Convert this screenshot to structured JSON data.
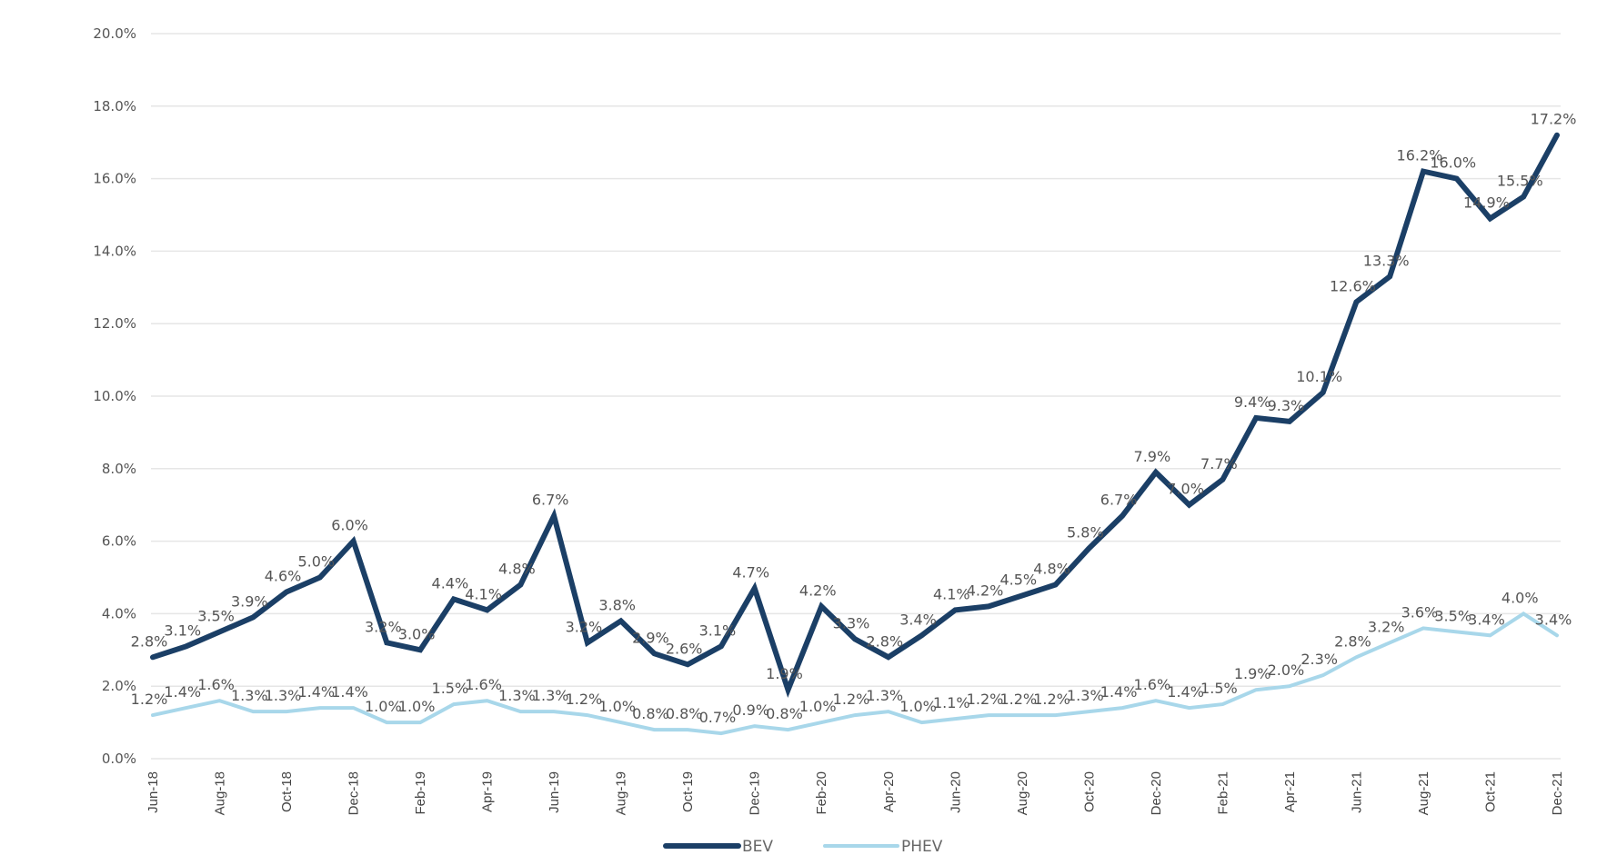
{
  "chart_data": {
    "type": "line",
    "title": "",
    "xlabel": "",
    "ylabel": "",
    "ylim": [
      0,
      20
    ],
    "y_ticks": [
      "0.0%",
      "2.0%",
      "4.0%",
      "6.0%",
      "8.0%",
      "10.0%",
      "12.0%",
      "14.0%",
      "16.0%",
      "18.0%",
      "20.0%"
    ],
    "y_tick_values": [
      0,
      2,
      4,
      6,
      8,
      10,
      12,
      14,
      16,
      18,
      20
    ],
    "grid": true,
    "legend_position": "bottom",
    "x": [
      "Jun-18",
      "Jul-18",
      "Aug-18",
      "Sep-18",
      "Oct-18",
      "Nov-18",
      "Dec-18",
      "Jan-19",
      "Feb-19",
      "Mar-19",
      "Apr-19",
      "May-19",
      "Jun-19",
      "Jul-19",
      "Aug-19",
      "Sep-19",
      "Oct-19",
      "Nov-19",
      "Dec-19",
      "Jan-20",
      "Feb-20",
      "Mar-20",
      "Apr-20",
      "May-20",
      "Jun-20",
      "Jul-20",
      "Aug-20",
      "Sep-20",
      "Oct-20",
      "Nov-20",
      "Dec-20",
      "Jan-21",
      "Feb-21",
      "Mar-21",
      "Apr-21",
      "May-21",
      "Jun-21",
      "Jul-21",
      "Aug-21",
      "Sep-21",
      "Oct-21",
      "Nov-21",
      "Dec-21"
    ],
    "x_tick_labels": [
      "Jun-18",
      "Aug-18",
      "Oct-18",
      "Dec-18",
      "Feb-19",
      "Apr-19",
      "Jun-19",
      "Aug-19",
      "Oct-19",
      "Dec-19",
      "Feb-20",
      "Apr-20",
      "Jun-20",
      "Aug-20",
      "Oct-20",
      "Dec-20",
      "Feb-21",
      "Apr-21",
      "Jun-21",
      "Aug-21",
      "Oct-21",
      "Dec-21"
    ],
    "series": [
      {
        "name": "BEV",
        "color": "#1b3f66",
        "values": [
          2.8,
          3.1,
          3.5,
          3.9,
          4.6,
          5.0,
          6.0,
          3.2,
          3.0,
          4.4,
          4.1,
          4.8,
          6.7,
          3.2,
          3.8,
          2.9,
          2.6,
          3.1,
          4.7,
          1.9,
          4.2,
          3.3,
          2.8,
          3.4,
          4.1,
          4.2,
          4.5,
          4.8,
          5.8,
          6.7,
          7.9,
          7.0,
          7.7,
          9.4,
          9.3,
          10.1,
          12.6,
          13.3,
          16.2,
          16.0,
          14.9,
          15.5,
          17.2
        ]
      },
      {
        "name": "PHEV",
        "color": "#a8d7ea",
        "values": [
          1.2,
          1.4,
          1.6,
          1.3,
          1.3,
          1.4,
          1.4,
          1.0,
          1.0,
          1.5,
          1.6,
          1.3,
          1.3,
          1.2,
          1.0,
          0.8,
          0.8,
          0.7,
          0.9,
          0.8,
          1.0,
          1.2,
          1.3,
          1.0,
          1.1,
          1.2,
          1.2,
          1.2,
          1.3,
          1.4,
          1.6,
          1.4,
          1.5,
          1.9,
          2.0,
          2.3,
          2.8,
          3.2,
          3.6,
          3.5,
          3.4,
          4.0,
          3.4
        ]
      }
    ]
  }
}
